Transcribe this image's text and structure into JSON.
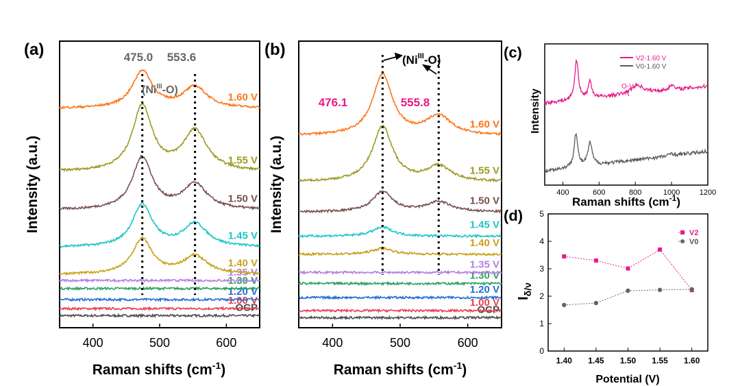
{
  "chart_data": [
    {
      "panel": "a",
      "type": "line",
      "panel_label": "(a)",
      "xlabel": "Raman shifts (cm",
      "xlabel_sup": "-1",
      "xlabel_close": ")",
      "ylabel": "Intensity (a.u.)",
      "xlim": [
        350,
        650
      ],
      "xticks": [
        400,
        500,
        600
      ],
      "series": [
        {
          "name": "OCP",
          "color": "#4d4d4d",
          "base": 0.12,
          "amp1": 0.0,
          "amp2": 0.0
        },
        {
          "name": "1.00 V",
          "color": "#e8404f",
          "base": 0.19,
          "amp1": 0.0,
          "amp2": 0.0
        },
        {
          "name": "1.20 V",
          "color": "#1f6fd6",
          "base": 0.28,
          "amp1": 0.0,
          "amp2": 0.0
        },
        {
          "name": "1.30 V",
          "color": "#2ea064",
          "base": 0.39,
          "amp1": 0.0,
          "amp2": 0.0
        },
        {
          "name": "1.35 V",
          "color": "#b57ee6",
          "base": 0.47,
          "amp1": 0.0,
          "amp2": 0.0
        },
        {
          "name": "1.40 V",
          "color": "#c8a21a",
          "base": 0.53,
          "amp1": 0.35,
          "amp2": 0.18
        },
        {
          "name": "1.45 V",
          "color": "#1cc6c6",
          "base": 0.8,
          "amp1": 0.42,
          "amp2": 0.23
        },
        {
          "name": "1.50 V",
          "color": "#7a4f4f",
          "base": 1.17,
          "amp1": 0.52,
          "amp2": 0.25
        },
        {
          "name": "1.55 V",
          "color": "#9c9a24",
          "base": 1.55,
          "amp1": 0.65,
          "amp2": 0.4
        },
        {
          "name": "1.60 V",
          "color": "#ff7417",
          "base": 2.18,
          "amp1": 0.37,
          "amp2": 0.21
        }
      ],
      "peaks": [
        "475.0",
        "553.6"
      ],
      "annotation": "(Ni",
      "annotation_sup": "III",
      "annotation_close": "-O)"
    },
    {
      "panel": "b",
      "type": "line",
      "panel_label": "(b)",
      "xlabel": "Raman shifts (cm",
      "xlabel_sup": "-1",
      "xlabel_close": ")",
      "ylabel": "Intensity (a.u.)",
      "xlim": [
        350,
        650
      ],
      "xticks": [
        400,
        500,
        600
      ],
      "series": [
        {
          "name": "OCP",
          "color": "#4d4d4d",
          "base": 0.1,
          "amp1": 0.0,
          "amp2": 0.0
        },
        {
          "name": "1.00 V",
          "color": "#e8404f",
          "base": 0.17,
          "amp1": 0.0,
          "amp2": 0.0
        },
        {
          "name": "1.20 V",
          "color": "#1f6fd6",
          "base": 0.3,
          "amp1": 0.0,
          "amp2": 0.0
        },
        {
          "name": "1.30 V",
          "color": "#2ea064",
          "base": 0.44,
          "amp1": 0.0,
          "amp2": 0.0
        },
        {
          "name": "1.35 V",
          "color": "#b57ee6",
          "base": 0.55,
          "amp1": 0.0,
          "amp2": 0.0
        },
        {
          "name": "1.40 V",
          "color": "#c8a21a",
          "base": 0.73,
          "amp1": 0.06,
          "amp2": 0.0
        },
        {
          "name": "1.45 V",
          "color": "#1cc6c6",
          "base": 0.91,
          "amp1": 0.09,
          "amp2": 0.0
        },
        {
          "name": "1.50 V",
          "color": "#7a4f4f",
          "base": 1.15,
          "amp1": 0.2,
          "amp2": 0.1
        },
        {
          "name": "1.55 V",
          "color": "#9c9a24",
          "base": 1.45,
          "amp1": 0.55,
          "amp2": 0.15
        },
        {
          "name": "1.60 V",
          "color": "#ff7417",
          "base": 1.91,
          "amp1": 0.6,
          "amp2": 0.19
        }
      ],
      "peaks": [
        "476.1",
        "555.8"
      ],
      "peak_color": "#e8198a",
      "annotation": "(Ni",
      "annotation_sup": "III",
      "annotation_close": "-O)"
    },
    {
      "panel": "c",
      "type": "line",
      "panel_label": "(c)",
      "xlabel": "Raman shifts (cm",
      "xlabel_sup": "-1",
      "xlabel_close": ")",
      "ylabel": "Intensity",
      "xlim": [
        300,
        1200
      ],
      "xticks": [
        400,
        600,
        800,
        1000,
        1200
      ],
      "series": [
        {
          "name": "V2-1.60 V",
          "color": "#e8198a"
        },
        {
          "name": "V0-1.60 V",
          "color": "#595959"
        }
      ],
      "annotation": "O-V"
    },
    {
      "panel": "d",
      "type": "scatter",
      "panel_label": "(d)",
      "xlabel": "Potential (V)",
      "ylabel_main": "I",
      "ylabel_sub": "δ/ν",
      "xlim": [
        1.375,
        1.625
      ],
      "ylim": [
        0,
        5
      ],
      "xticks": [
        "1.40",
        "1.45",
        "1.50",
        "1.55",
        "1.60"
      ],
      "yticks": [
        "0",
        "1",
        "2",
        "3",
        "4",
        "5"
      ],
      "x": [
        1.4,
        1.45,
        1.5,
        1.55,
        1.6
      ],
      "series": [
        {
          "name": "V2",
          "color": "#e8198a",
          "marker": "square",
          "values": [
            3.45,
            3.3,
            3.01,
            3.7,
            2.22
          ]
        },
        {
          "name": "V0",
          "color": "#666666",
          "marker": "circle",
          "values": [
            1.68,
            1.75,
            2.2,
            2.23,
            2.25
          ]
        }
      ]
    }
  ]
}
